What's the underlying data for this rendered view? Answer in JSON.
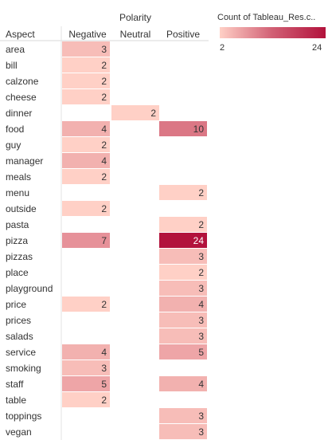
{
  "chart_data": {
    "type": "heatmap",
    "column_group_label": "Polarity",
    "row_header": "Aspect",
    "columns": [
      "Negative",
      "Neutral",
      "Positive"
    ],
    "rows": [
      "area",
      "bill",
      "calzone",
      "cheese",
      "dinner",
      "food",
      "guy",
      "manager",
      "meals",
      "menu",
      "outside",
      "pasta",
      "pizza",
      "pizzas",
      "place",
      "playground",
      "price",
      "prices",
      "salads",
      "service",
      "smoking",
      "staff",
      "table",
      "toppings",
      "vegan"
    ],
    "values": [
      [
        3,
        null,
        null
      ],
      [
        2,
        null,
        null
      ],
      [
        2,
        null,
        null
      ],
      [
        2,
        null,
        null
      ],
      [
        null,
        2,
        null
      ],
      [
        4,
        null,
        10
      ],
      [
        2,
        null,
        null
      ],
      [
        4,
        null,
        null
      ],
      [
        2,
        null,
        null
      ],
      [
        null,
        null,
        2
      ],
      [
        2,
        null,
        null
      ],
      [
        null,
        null,
        2
      ],
      [
        7,
        null,
        24
      ],
      [
        null,
        null,
        3
      ],
      [
        null,
        null,
        2
      ],
      [
        null,
        null,
        3
      ],
      [
        2,
        null,
        4
      ],
      [
        null,
        null,
        3
      ],
      [
        null,
        null,
        3
      ],
      [
        4,
        null,
        5
      ],
      [
        3,
        null,
        null
      ],
      [
        5,
        null,
        4
      ],
      [
        2,
        null,
        null
      ],
      [
        null,
        null,
        3
      ],
      [
        null,
        null,
        3
      ]
    ],
    "legend": {
      "title": "Count of Tableau_Res.c..",
      "min": 2,
      "max": 24,
      "min_label": "2",
      "max_label": "24",
      "color_low": "#ffd0c6",
      "color_high": "#b2123c"
    }
  }
}
